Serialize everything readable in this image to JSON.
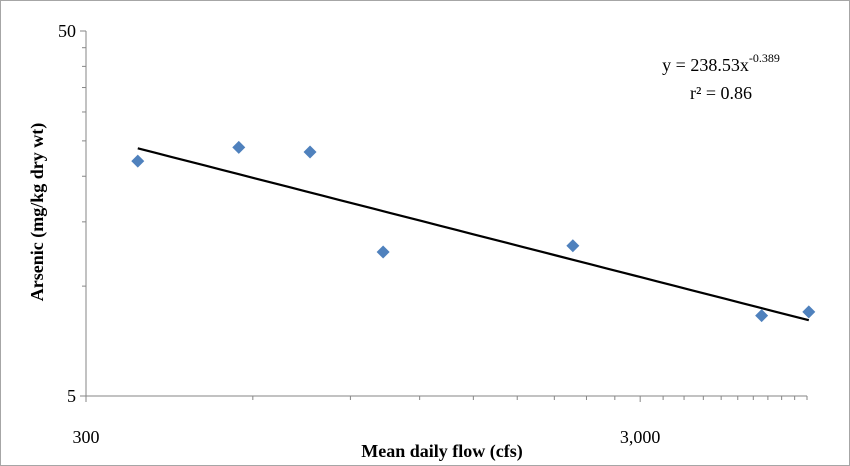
{
  "chart_data": {
    "type": "scatter",
    "title": "",
    "xlabel": "Mean daily flow (cfs)",
    "ylabel": "Arsenic (mg/kg dry wt)",
    "x_scale": "log",
    "y_scale": "log",
    "xlim": [
      300,
      6000
    ],
    "ylim": [
      5,
      50
    ],
    "x_ticks": [
      {
        "value": 300,
        "label": "300"
      },
      {
        "value": 3000,
        "label": "3,000"
      }
    ],
    "y_ticks": [
      {
        "value": 5,
        "label": "5"
      },
      {
        "value": 50,
        "label": "50"
      }
    ],
    "grid": false,
    "legend": "none",
    "marker_color": "#4f81bd",
    "trendline_color": "#000000",
    "series": [
      {
        "marker": "diamond",
        "points": [
          {
            "x": 372,
            "y": 22.0
          },
          {
            "x": 566,
            "y": 24.0
          },
          {
            "x": 761,
            "y": 23.3
          },
          {
            "x": 1031,
            "y": 12.4
          },
          {
            "x": 2268,
            "y": 12.9
          },
          {
            "x": 4969,
            "y": 8.3
          },
          {
            "x": 6045,
            "y": 8.5
          }
        ]
      }
    ],
    "trendline": {
      "type": "power",
      "a": 238.53,
      "b": -0.389,
      "x_range": [
        372,
        6045
      ],
      "equation_base": "y = 238.53x",
      "equation_exp": "-0.389",
      "r2_text": "r² = 0.86"
    }
  }
}
